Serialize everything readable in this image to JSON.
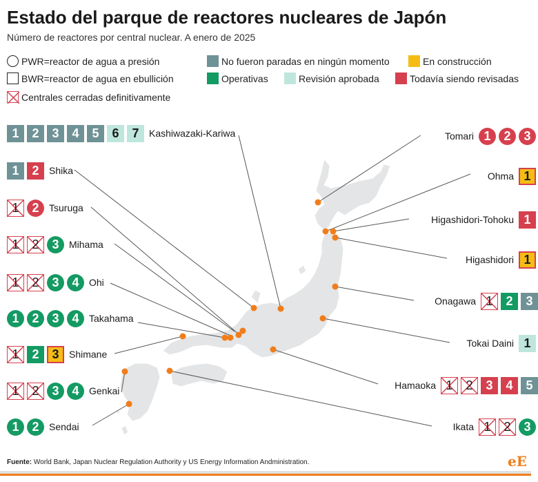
{
  "title": "Estado del parque de reactores nucleares de Japón",
  "subtitle": "Número de reactores por central nuclear. A enero de 2025",
  "legend": {
    "pwr": "PWR=reactor de agua a presión",
    "bwr": "BWR=reactor de agua en ebullición",
    "closed": "Centrales cerradas definitivamente",
    "never_stopped": "No fueron paradas en ningún momento",
    "operating": "Operativas",
    "under_construction": "En construcción",
    "review_approved": "Revisión aprobada",
    "under_review": "Todavía siendo revisadas"
  },
  "colors": {
    "operating": "#149a63",
    "review_approved": "#bfe6dc",
    "never_stopped": "#6f9296",
    "under_review": "#d6404e",
    "under_construction": "#f5bd14",
    "plant_marker": "#f07d1a",
    "map_fill": "#e3e5e6"
  },
  "plants": [
    {
      "name": "Kashiwazaki-Kariwa",
      "units": [
        {
          "n": "1",
          "type": "bwr",
          "status": "never_stopped"
        },
        {
          "n": "2",
          "type": "bwr",
          "status": "never_stopped"
        },
        {
          "n": "3",
          "type": "bwr",
          "status": "never_stopped"
        },
        {
          "n": "4",
          "type": "bwr",
          "status": "never_stopped"
        },
        {
          "n": "5",
          "type": "bwr",
          "status": "never_stopped"
        },
        {
          "n": "6",
          "type": "bwr",
          "status": "review_approved"
        },
        {
          "n": "7",
          "type": "bwr",
          "status": "review_approved"
        }
      ]
    },
    {
      "name": "Shika",
      "units": [
        {
          "n": "1",
          "type": "bwr",
          "status": "never_stopped"
        },
        {
          "n": "2",
          "type": "bwr",
          "status": "under_review"
        }
      ]
    },
    {
      "name": "Tsuruga",
      "units": [
        {
          "n": "1",
          "type": "bwr",
          "status": "closed"
        },
        {
          "n": "2",
          "type": "pwr",
          "status": "under_review"
        }
      ]
    },
    {
      "name": "Mihama",
      "units": [
        {
          "n": "1",
          "type": "pwr",
          "status": "closed"
        },
        {
          "n": "2",
          "type": "pwr",
          "status": "closed"
        },
        {
          "n": "3",
          "type": "pwr",
          "status": "operating"
        }
      ]
    },
    {
      "name": "Ohi",
      "units": [
        {
          "n": "1",
          "type": "pwr",
          "status": "closed"
        },
        {
          "n": "2",
          "type": "pwr",
          "status": "closed"
        },
        {
          "n": "3",
          "type": "pwr",
          "status": "operating"
        },
        {
          "n": "4",
          "type": "pwr",
          "status": "operating"
        }
      ]
    },
    {
      "name": "Takahama",
      "units": [
        {
          "n": "1",
          "type": "pwr",
          "status": "operating"
        },
        {
          "n": "2",
          "type": "pwr",
          "status": "operating"
        },
        {
          "n": "3",
          "type": "pwr",
          "status": "operating"
        },
        {
          "n": "4",
          "type": "pwr",
          "status": "operating"
        }
      ]
    },
    {
      "name": "Shimane",
      "units": [
        {
          "n": "1",
          "type": "bwr",
          "status": "closed"
        },
        {
          "n": "2",
          "type": "bwr",
          "status": "operating"
        },
        {
          "n": "3",
          "type": "bwr",
          "status": "under_construction"
        }
      ]
    },
    {
      "name": "Genkai",
      "units": [
        {
          "n": "1",
          "type": "pwr",
          "status": "closed"
        },
        {
          "n": "2",
          "type": "pwr",
          "status": "closed"
        },
        {
          "n": "3",
          "type": "pwr",
          "status": "operating"
        },
        {
          "n": "4",
          "type": "pwr",
          "status": "operating"
        }
      ]
    },
    {
      "name": "Sendai",
      "units": [
        {
          "n": "1",
          "type": "pwr",
          "status": "operating"
        },
        {
          "n": "2",
          "type": "pwr",
          "status": "operating"
        }
      ]
    },
    {
      "name": "Tomari",
      "units": [
        {
          "n": "1",
          "type": "pwr",
          "status": "under_review"
        },
        {
          "n": "2",
          "type": "pwr",
          "status": "under_review"
        },
        {
          "n": "3",
          "type": "pwr",
          "status": "under_review"
        }
      ]
    },
    {
      "name": "Ohma",
      "units": [
        {
          "n": "1",
          "type": "bwr",
          "status": "under_construction"
        }
      ]
    },
    {
      "name": "Higashidori-Tohoku",
      "units": [
        {
          "n": "1",
          "type": "bwr",
          "status": "under_review"
        }
      ]
    },
    {
      "name": "Higashidori",
      "units": [
        {
          "n": "1",
          "type": "bwr",
          "status": "under_construction"
        }
      ]
    },
    {
      "name": "Onagawa",
      "units": [
        {
          "n": "1",
          "type": "bwr",
          "status": "closed"
        },
        {
          "n": "2",
          "type": "bwr",
          "status": "operating"
        },
        {
          "n": "3",
          "type": "bwr",
          "status": "never_stopped"
        }
      ]
    },
    {
      "name": "Tokai Daini",
      "units": [
        {
          "n": "1",
          "type": "bwr",
          "status": "review_approved"
        }
      ]
    },
    {
      "name": "Hamaoka",
      "units": [
        {
          "n": "1",
          "type": "bwr",
          "status": "closed"
        },
        {
          "n": "2",
          "type": "bwr",
          "status": "closed"
        },
        {
          "n": "3",
          "type": "bwr",
          "status": "under_review"
        },
        {
          "n": "4",
          "type": "bwr",
          "status": "under_review"
        },
        {
          "n": "5",
          "type": "bwr",
          "status": "never_stopped"
        }
      ]
    },
    {
      "name": "Ikata",
      "units": [
        {
          "n": "1",
          "type": "pwr",
          "status": "closed"
        },
        {
          "n": "2",
          "type": "pwr",
          "status": "closed"
        },
        {
          "n": "3",
          "type": "pwr",
          "status": "operating"
        }
      ]
    }
  ],
  "source": {
    "label": "Fuente:",
    "text": " World Bank, Japan Nuclear Regulation Authority y US Energy Information Andministration."
  },
  "brand": {
    "e": "e",
    "E": "E"
  }
}
